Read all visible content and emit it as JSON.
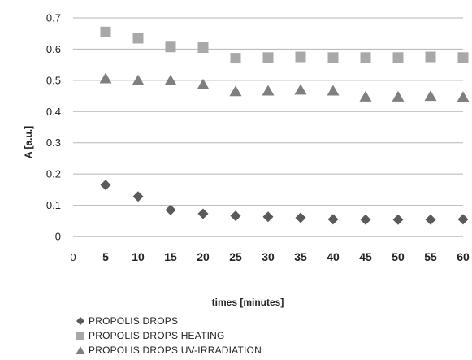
{
  "chart_data": {
    "type": "scatter",
    "title": "",
    "xlabel": "times [minutes]",
    "ylabel": "A [a.u.]",
    "x_ticks": [
      "0",
      "5",
      "10",
      "15",
      "20",
      "25",
      "30",
      "35",
      "40",
      "45",
      "50",
      "55",
      "60"
    ],
    "y_ticks": [
      "0",
      "0.1",
      "0.2",
      "0.3",
      "0.4",
      "0.5",
      "0.6",
      "0.7"
    ],
    "x": [
      5,
      10,
      15,
      20,
      25,
      30,
      35,
      40,
      45,
      50,
      55,
      60
    ],
    "xlim": [
      0,
      60
    ],
    "ylim": [
      0,
      0.7
    ],
    "grid": "horizontal",
    "legend_position": "bottom",
    "series": [
      {
        "name": "PROPOLIS DROPS",
        "marker": "diamond",
        "color": "#5a5a5a",
        "values": [
          0.165,
          0.128,
          0.085,
          0.073,
          0.066,
          0.063,
          0.06,
          0.055,
          0.054,
          0.054,
          0.054,
          0.055
        ]
      },
      {
        "name": "PROPOLIS DROPS HEATING",
        "marker": "square",
        "color": "#a8a8a8",
        "values": [
          0.655,
          0.635,
          0.607,
          0.605,
          0.571,
          0.573,
          0.575,
          0.573,
          0.573,
          0.573,
          0.575,
          0.573
        ]
      },
      {
        "name": "PROPOLIS DROPS UV-IRRADIATION",
        "marker": "triangle",
        "color": "#7f7f7f",
        "values": [
          0.506,
          0.5,
          0.5,
          0.487,
          0.465,
          0.467,
          0.47,
          0.467,
          0.448,
          0.448,
          0.45,
          0.447
        ]
      }
    ]
  }
}
